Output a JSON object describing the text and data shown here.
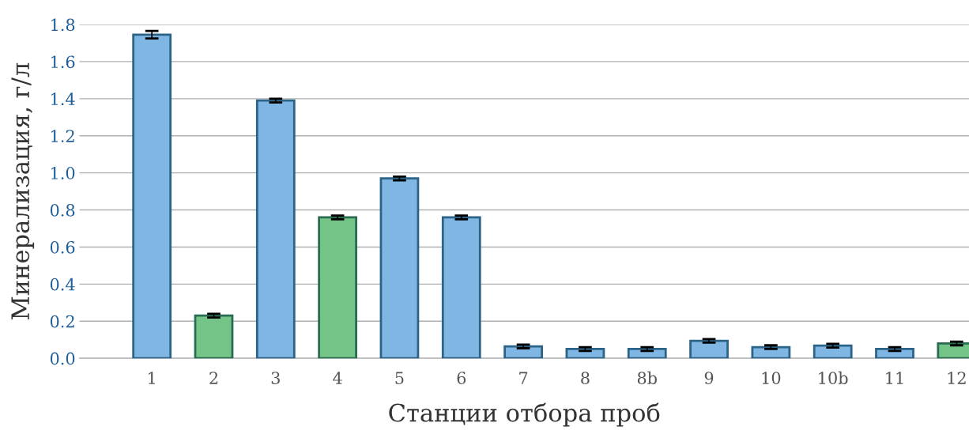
{
  "chart_data": {
    "type": "bar",
    "xlabel": "Станции отбора проб",
    "ylabel": "Минерализация, г/л",
    "categories": [
      "1",
      "2",
      "3",
      "4",
      "5",
      "6",
      "7",
      "8",
      "8b",
      "9",
      "10",
      "10b",
      "11",
      "12"
    ],
    "values": [
      1.745,
      0.23,
      1.39,
      0.76,
      0.97,
      0.76,
      0.064,
      0.05,
      0.05,
      0.094,
      0.06,
      0.068,
      0.05,
      0.08
    ],
    "errors": [
      0.02,
      0.01,
      0.01,
      0.01,
      0.01,
      0.01,
      0.01,
      0.01,
      0.01,
      0.01,
      0.01,
      0.01,
      0.01,
      0.01
    ],
    "colors": [
      "#7fb6e3",
      "#74c488",
      "#7fb6e3",
      "#74c488",
      "#7fb6e3",
      "#7fb6e3",
      "#7fb6e3",
      "#7fb6e3",
      "#7fb6e3",
      "#7fb6e3",
      "#7fb6e3",
      "#7fb6e3",
      "#7fb6e3",
      "#74c488"
    ],
    "ylim": [
      0,
      1.8
    ],
    "yticks": [
      {
        "value": 0,
        "label": "0.0"
      },
      0.2,
      0.4,
      0.6,
      0.8,
      {
        "value": 1,
        "label": "1.0"
      },
      1.2,
      1.4,
      1.6,
      1.8
    ],
    "grid": "y",
    "legend": false
  }
}
